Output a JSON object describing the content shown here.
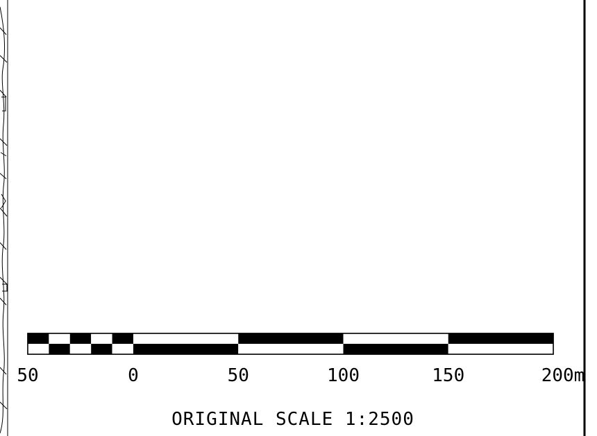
{
  "scale_bar": {
    "unit": "m",
    "segments_left": [
      50,
      40,
      30,
      20,
      10,
      0
    ],
    "segments_right": [
      0,
      50,
      100,
      150,
      200
    ],
    "tick_labels": [
      "50",
      "0",
      "50",
      "100",
      "150",
      "200m"
    ],
    "bar_color": "#000000",
    "fill_color": "#ffffff"
  },
  "caption": {
    "text": "ORIGINAL SCALE 1:2500"
  },
  "frame": {
    "line_color": "#000000"
  }
}
